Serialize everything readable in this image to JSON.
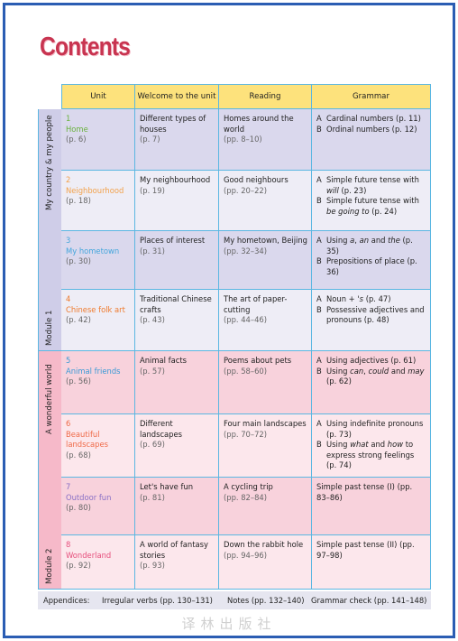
{
  "title": "Contents",
  "table": {
    "header": [
      "Unit",
      "Welcome to the unit",
      "Reading",
      "Grammar"
    ],
    "modules": [
      {
        "theme": "My country & my people",
        "label": "Module 1",
        "units": [
          {
            "number": 1,
            "name": "Home",
            "color": "#6ab23e",
            "pages": "(p. 6)",
            "welcome": {
              "text": "Different types of houses",
              "pages": "(p. 7)"
            },
            "reading": {
              "text": "Homes around the world",
              "pages": "(pp. 8–10)"
            },
            "grammar": [
              {
                "letter": "A",
                "parts": [
                  "Cardinal numbers (p. 11)"
                ]
              },
              {
                "letter": "B",
                "parts": [
                  "Ordinal numbers (p. 12)"
                ]
              }
            ]
          },
          {
            "number": 2,
            "name": "Neighbourhood",
            "color": "#f2a24c",
            "pages": "(p. 18)",
            "welcome": {
              "text": "My neighbourhood",
              "pages": "(p. 19)"
            },
            "reading": {
              "text": "Good neighbours",
              "pages": "(pp. 20–22)"
            },
            "grammar": [
              {
                "letter": "A",
                "parts": [
                  "Simple future tense with ",
                  "will",
                  " (p. 23)"
                ]
              },
              {
                "letter": "B",
                "parts": [
                  "Simple future tense with ",
                  "be going to",
                  " (p. 24)"
                ]
              }
            ]
          },
          {
            "number": 3,
            "name": "My hometown",
            "color": "#45a6dc",
            "pages": "(p. 30)",
            "welcome": {
              "text": "Places of interest",
              "pages": "(p. 31)"
            },
            "reading": {
              "text": "My hometown, Beijing",
              "pages": "(pp. 32–34)"
            },
            "grammar": [
              {
                "letter": "A",
                "parts": [
                  "Using ",
                  "a",
                  ", ",
                  "an",
                  " and ",
                  "the",
                  " (p. 35)"
                ]
              },
              {
                "letter": "B",
                "parts": [
                  "Prepositions of place (p. 36)"
                ]
              }
            ]
          },
          {
            "number": 4,
            "name": "Chinese folk art",
            "color": "#ef7a2c",
            "pages": "(p. 42)",
            "welcome": {
              "text": "Traditional Chinese crafts",
              "pages": "(p. 43)"
            },
            "reading": {
              "text": "The art of paper-cutting",
              "pages": "(pp. 44–46)"
            },
            "grammar": [
              {
                "letter": "A",
                "parts": [
                  "Noun + ",
                  "'s",
                  " (p. 47)"
                ]
              },
              {
                "letter": "B",
                "parts": [
                  "Possessive adjectives and pronouns (p. 48)"
                ]
              }
            ]
          }
        ]
      },
      {
        "theme": "A wonderful world",
        "label": "Module 2",
        "units": [
          {
            "number": 5,
            "name": "Animal friends",
            "color": "#3a9ad6",
            "pages": "(p. 56)",
            "welcome": {
              "text": "Animal facts",
              "pages": "(p. 57)"
            },
            "reading": {
              "text": "Poems about pets",
              "pages": "(pp. 58–60)"
            },
            "grammar": [
              {
                "letter": "A",
                "parts": [
                  "Using adjectives (p. 61)"
                ]
              },
              {
                "letter": "B",
                "parts": [
                  "Using ",
                  "can",
                  ", ",
                  "could",
                  " and ",
                  "may",
                  " (p. 62)"
                ]
              }
            ]
          },
          {
            "number": 6,
            "name": "Beautiful landscapes",
            "color": "#ef6a48",
            "pages": "(p. 68)",
            "welcome": {
              "text": "Different landscapes",
              "pages": "(p. 69)"
            },
            "reading": {
              "text": "Four main landscapes",
              "pages": "(pp. 70–72)"
            },
            "grammar": [
              {
                "letter": "A",
                "parts": [
                  "Using indefinite pronouns (p. 73)"
                ]
              },
              {
                "letter": "B",
                "parts": [
                  "Using ",
                  "what",
                  " and ",
                  "how",
                  " to express strong feelings (p. 74)"
                ]
              }
            ]
          },
          {
            "number": 7,
            "name": "Outdoor fun",
            "color": "#8a70c6",
            "pages": "(p. 80)",
            "welcome": {
              "text": "Let's have fun",
              "pages": "(p. 81)"
            },
            "reading": {
              "text": "A cycling trip",
              "pages": "(pp. 82–84)"
            },
            "grammar": [
              {
                "parts": [
                  "Simple past tense (I) (pp. 83–86)"
                ]
              }
            ]
          },
          {
            "number": 8,
            "name": "Wonderland",
            "color": "#e64f7c",
            "pages": "(p. 92)",
            "welcome": {
              "text": "A world of fantasy stories",
              "pages": "(p. 93)"
            },
            "reading": {
              "text": "Down the rabbit hole",
              "pages": "(pp. 94–96)"
            },
            "grammar": [
              {
                "parts": [
                  "Simple past tense (II) (pp. 97–98)"
                ]
              }
            ]
          }
        ]
      }
    ]
  },
  "appendices": {
    "label": "Appendices:",
    "items": [
      "Irregular verbs (pp. 130–131)",
      "Notes (pp. 132–140)",
      "Grammar check (pp. 141–148)"
    ]
  },
  "watermark": "译林出版社"
}
